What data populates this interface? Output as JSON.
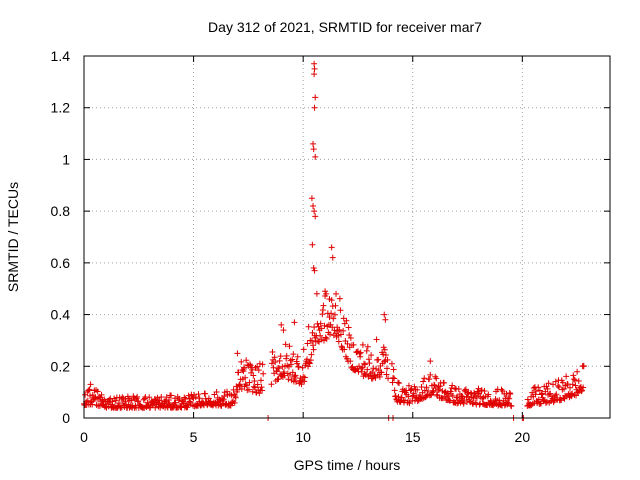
{
  "chart_data": {
    "type": "scatter",
    "title": "Day 312 of 2021, SRMTID for receiver mar7",
    "xlabel": "GPS time / hours",
    "ylabel": "SRMTID / TECUs",
    "xlim": [
      0,
      24
    ],
    "ylim": [
      0,
      1.4
    ],
    "x_ticks": [
      0,
      5,
      10,
      15,
      20
    ],
    "x_tick_labels": [
      "0",
      "5",
      "10",
      "15",
      "20"
    ],
    "y_ticks": [
      0,
      0.2,
      0.4,
      0.6,
      0.8,
      1.0,
      1.2,
      1.4
    ],
    "y_tick_labels": [
      "0",
      "0.2",
      "0.4",
      "0.6",
      "0.8",
      "1",
      "1.2",
      "1.4"
    ],
    "grid": true,
    "marker": "plus",
    "series_color": "#e00000",
    "series": [
      {
        "name": "SRMTID",
        "profile": [
          {
            "x": 0.0,
            "base": 0.06,
            "spread": 0.03
          },
          {
            "x": 0.3,
            "base": 0.07,
            "spread": 0.05
          },
          {
            "x": 1.0,
            "base": 0.05,
            "spread": 0.03
          },
          {
            "x": 3.0,
            "base": 0.05,
            "spread": 0.03
          },
          {
            "x": 4.5,
            "base": 0.05,
            "spread": 0.03
          },
          {
            "x": 5.5,
            "base": 0.06,
            "spread": 0.03
          },
          {
            "x": 6.8,
            "base": 0.06,
            "spread": 0.04
          },
          {
            "x": 7.2,
            "base": 0.14,
            "spread": 0.08
          },
          {
            "x": 8.0,
            "base": 0.12,
            "spread": 0.07
          },
          {
            "x": 9.0,
            "base": 0.19,
            "spread": 0.09
          },
          {
            "x": 10.0,
            "base": 0.16,
            "spread": 0.09
          },
          {
            "x": 10.6,
            "base": 0.33,
            "spread": 0.12
          },
          {
            "x": 11.5,
            "base": 0.36,
            "spread": 0.12
          },
          {
            "x": 12.2,
            "base": 0.22,
            "spread": 0.08
          },
          {
            "x": 13.0,
            "base": 0.18,
            "spread": 0.09
          },
          {
            "x": 13.8,
            "base": 0.2,
            "spread": 0.1
          },
          {
            "x": 14.3,
            "base": 0.08,
            "spread": 0.05
          },
          {
            "x": 15.0,
            "base": 0.07,
            "spread": 0.04
          },
          {
            "x": 15.8,
            "base": 0.11,
            "spread": 0.06
          },
          {
            "x": 17.0,
            "base": 0.07,
            "spread": 0.04
          },
          {
            "x": 19.5,
            "base": 0.06,
            "spread": 0.04
          },
          {
            "x": 20.2,
            "base": 0.06,
            "spread": 0.04
          },
          {
            "x": 21.5,
            "base": 0.08,
            "spread": 0.05
          },
          {
            "x": 22.8,
            "base": 0.12,
            "spread": 0.07
          }
        ],
        "sample_interval_hours": 0.025,
        "gaps": [
          [
            8.2,
            8.55
          ],
          [
            13.9,
            14.05
          ],
          [
            19.5,
            20.2
          ],
          [
            22.8,
            24
          ]
        ],
        "outliers": [
          [
            10.5,
            1.37
          ],
          [
            10.52,
            1.35
          ],
          [
            10.5,
            1.33
          ],
          [
            10.55,
            1.24
          ],
          [
            10.52,
            1.2
          ],
          [
            10.45,
            1.06
          ],
          [
            10.48,
            1.04
          ],
          [
            10.55,
            1.01
          ],
          [
            10.4,
            0.85
          ],
          [
            10.45,
            0.82
          ],
          [
            10.5,
            0.8
          ],
          [
            10.55,
            0.78
          ],
          [
            10.42,
            0.67
          ],
          [
            10.48,
            0.58
          ],
          [
            10.52,
            0.57
          ],
          [
            11.3,
            0.66
          ],
          [
            11.35,
            0.62
          ],
          [
            11.0,
            0.49
          ],
          [
            11.5,
            0.48
          ],
          [
            11.2,
            0.46
          ],
          [
            9.0,
            0.36
          ],
          [
            9.1,
            0.34
          ],
          [
            9.6,
            0.37
          ],
          [
            13.7,
            0.4
          ],
          [
            13.75,
            0.38
          ],
          [
            7.0,
            0.25
          ],
          [
            15.8,
            0.22
          ],
          [
            22.8,
            0.2
          ],
          [
            0.3,
            0.13
          ],
          [
            7.3,
            0.19
          ]
        ],
        "zero_points": [
          8.4,
          13.9,
          14.1,
          19.6,
          20.0,
          20.05
        ]
      }
    ]
  }
}
